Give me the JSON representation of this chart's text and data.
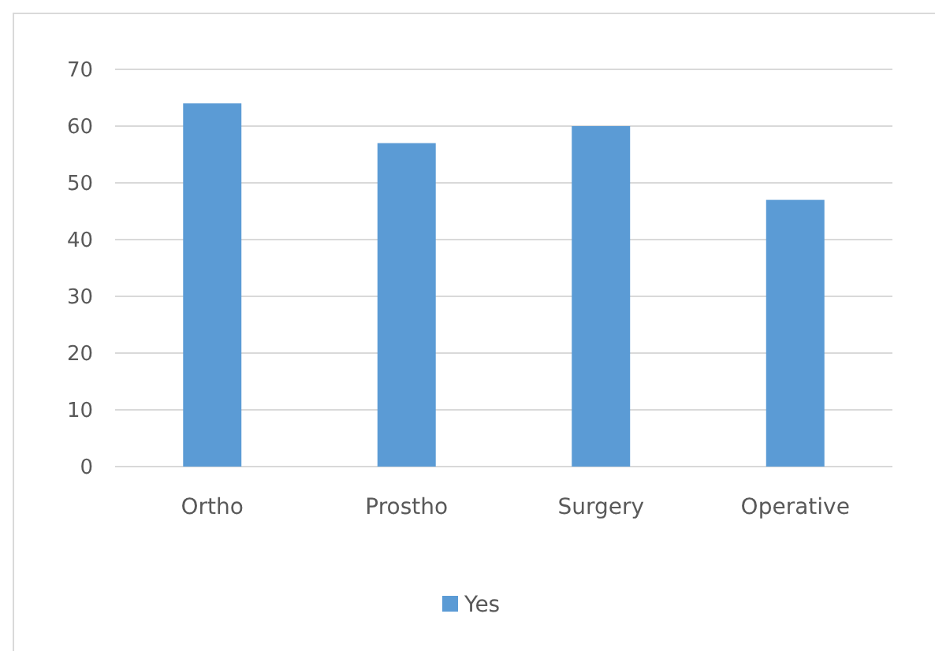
{
  "chart_data": {
    "type": "bar",
    "categories": [
      "Ortho",
      "Prostho",
      "Surgery",
      "Operative"
    ],
    "series": [
      {
        "name": "Yes",
        "color": "#5b9bd5",
        "values": [
          64,
          57,
          60,
          47
        ]
      }
    ],
    "ylim": [
      0,
      70
    ],
    "yticks": [
      0,
      10,
      20,
      30,
      40,
      50,
      60,
      70
    ],
    "grid": "y",
    "legend": "bottom"
  }
}
